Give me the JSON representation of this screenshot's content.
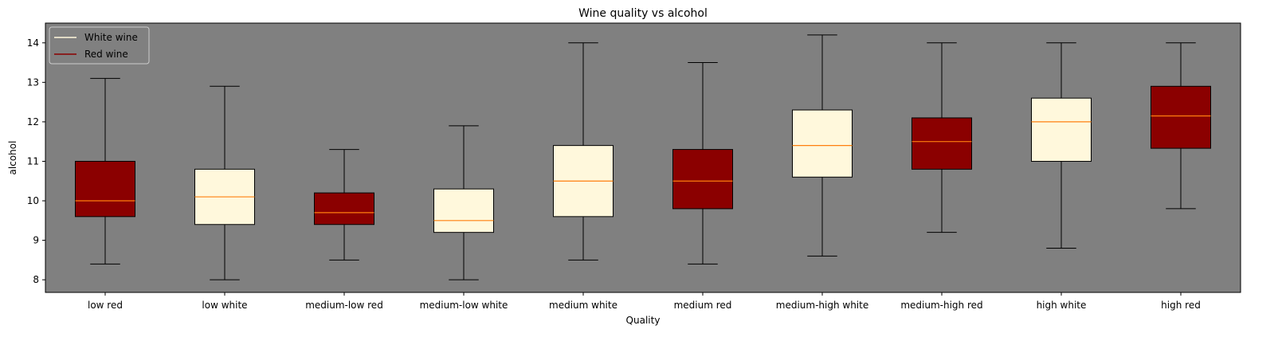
{
  "chart_data": {
    "type": "boxplot",
    "title": "Wine quality vs alcohol",
    "xlabel": "Quality",
    "ylabel": "alcohol",
    "ylim": [
      7.68,
      14.5
    ],
    "yticks": [
      8,
      9,
      10,
      11,
      12,
      13,
      14
    ],
    "grid": false,
    "background_color": "#808080",
    "median_color": "#ff7f0e",
    "legend": {
      "location": "upper-left",
      "entries": [
        {
          "label": "White wine",
          "color": "#fff8dc"
        },
        {
          "label": "Red wine",
          "color": "#8b0000"
        }
      ]
    },
    "boxes": [
      {
        "category": "low red",
        "type": "red",
        "whisker_low": 8.4,
        "q1": 9.6,
        "median": 10.0,
        "q3": 11.0,
        "whisker_high": 13.1
      },
      {
        "category": "low white",
        "type": "white",
        "whisker_low": 8.0,
        "q1": 9.4,
        "median": 10.1,
        "q3": 10.8,
        "whisker_high": 12.9
      },
      {
        "category": "medium-low red",
        "type": "red",
        "whisker_low": 8.5,
        "q1": 9.4,
        "median": 9.7,
        "q3": 10.2,
        "whisker_high": 11.3
      },
      {
        "category": "medium-low white",
        "type": "white",
        "whisker_low": 8.0,
        "q1": 9.2,
        "median": 9.5,
        "q3": 10.3,
        "whisker_high": 11.9
      },
      {
        "category": "medium white",
        "type": "white",
        "whisker_low": 8.5,
        "q1": 9.6,
        "median": 10.5,
        "q3": 11.4,
        "whisker_high": 14.0
      },
      {
        "category": "medium red",
        "type": "red",
        "whisker_low": 8.4,
        "q1": 9.8,
        "median": 10.5,
        "q3": 11.3,
        "whisker_high": 13.5
      },
      {
        "category": "medium-high white",
        "type": "white",
        "whisker_low": 8.6,
        "q1": 10.6,
        "median": 11.4,
        "q3": 12.3,
        "whisker_high": 14.2
      },
      {
        "category": "medium-high red",
        "type": "red",
        "whisker_low": 9.2,
        "q1": 10.8,
        "median": 11.5,
        "q3": 12.1,
        "whisker_high": 14.0
      },
      {
        "category": "high white",
        "type": "white",
        "whisker_low": 8.8,
        "q1": 11.0,
        "median": 12.0,
        "q3": 12.6,
        "whisker_high": 14.0
      },
      {
        "category": "high red",
        "type": "red",
        "whisker_low": 9.8,
        "q1": 11.33,
        "median": 12.15,
        "q3": 12.9,
        "whisker_high": 14.0
      }
    ]
  }
}
